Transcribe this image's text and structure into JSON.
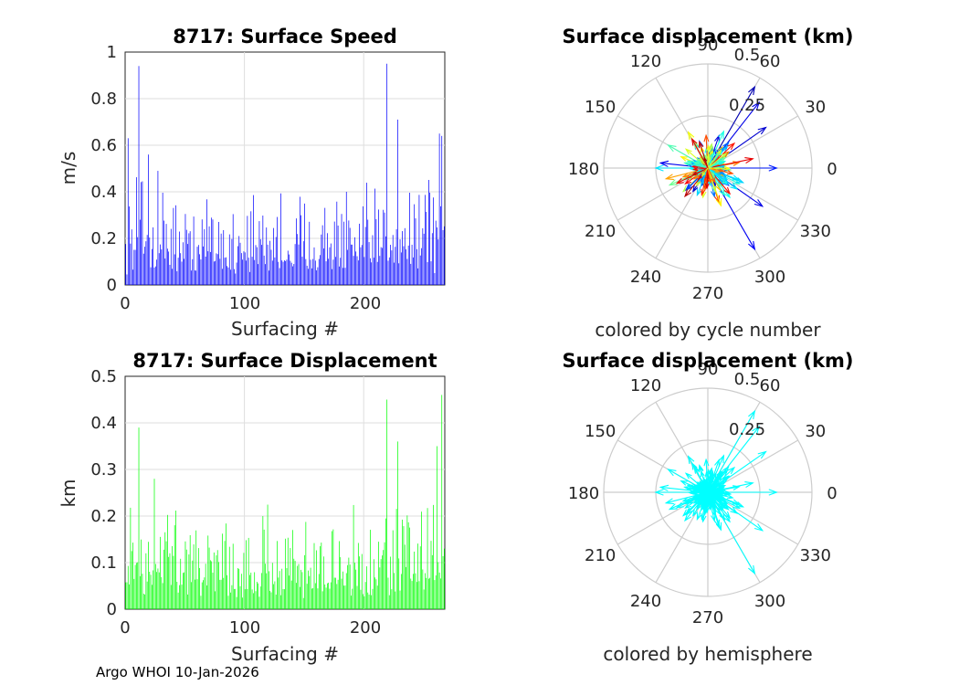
{
  "footer": "Argo WHOI 10-Jan-2026",
  "colors": {
    "speed": "#0000ff",
    "displacement": "#00ff00",
    "hemisphere": "#00ffff",
    "grid": "#dedede",
    "axis": "#262626"
  },
  "chart_data": [
    {
      "id": "speed",
      "type": "bar",
      "title": "8717: Surface Speed",
      "xlabel": "Surfacing #",
      "ylabel": "m/s",
      "xlim": [
        0,
        268
      ],
      "ylim": [
        0,
        1
      ],
      "xticks": [
        "0",
        "100",
        "200"
      ],
      "yticks": [
        "0",
        "0.2",
        "0.4",
        "0.6",
        "0.8",
        "1"
      ],
      "grid": true,
      "n": 268,
      "peaks": [
        {
          "x": 3,
          "y": 0.63
        },
        {
          "x": 12,
          "y": 0.94
        },
        {
          "x": 20,
          "y": 0.56
        },
        {
          "x": 28,
          "y": 0.49
        },
        {
          "x": 220,
          "y": 0.95
        },
        {
          "x": 229,
          "y": 0.71
        },
        {
          "x": 264,
          "y": 0.65
        },
        {
          "x": 266,
          "y": 0.64
        }
      ],
      "baseline_mean": 0.22
    },
    {
      "id": "displacement",
      "type": "bar",
      "title": "8717: Surface Displacement",
      "xlabel": "Surfacing #",
      "ylabel": "km",
      "xlim": [
        0,
        268
      ],
      "ylim": [
        0,
        0.5
      ],
      "xticks": [
        "0",
        "100",
        "200"
      ],
      "yticks": [
        "0",
        "0.1",
        "0.2",
        "0.3",
        "0.4",
        "0.5"
      ],
      "grid": true,
      "n": 268,
      "peaks": [
        {
          "x": 12,
          "y": 0.39
        },
        {
          "x": 25,
          "y": 0.28
        },
        {
          "x": 220,
          "y": 0.45
        },
        {
          "x": 229,
          "y": 0.36
        },
        {
          "x": 262,
          "y": 0.35
        },
        {
          "x": 266,
          "y": 0.46
        }
      ],
      "baseline_mean": 0.11
    },
    {
      "id": "polar-cycle",
      "type": "polar-quiver",
      "title": "Surface displacement (km)",
      "caption": "colored by cycle number",
      "rmax": 0.5,
      "rticks": [
        "0.25",
        "0.5"
      ],
      "angle_ticks": [
        "0",
        "30",
        "60",
        "90",
        "120",
        "150",
        "180",
        "210",
        "240",
        "270",
        "300",
        "330"
      ],
      "colormap": "jet",
      "long_vectors": [
        {
          "angle": 60,
          "r": 0.45
        },
        {
          "angle": 52,
          "r": 0.4
        },
        {
          "angle": 35,
          "r": 0.34
        },
        {
          "angle": 0,
          "r": 0.33
        },
        {
          "angle": 300,
          "r": 0.45
        },
        {
          "angle": 325,
          "r": 0.32
        },
        {
          "angle": 180,
          "r": 0.25
        },
        {
          "angle": 150,
          "r": 0.22
        }
      ]
    },
    {
      "id": "polar-hemisphere",
      "type": "polar-quiver",
      "title": "Surface displacement (km)",
      "caption": "colored by hemisphere",
      "rmax": 0.5,
      "rticks": [
        "0.25",
        "0.5"
      ],
      "angle_ticks": [
        "0",
        "30",
        "60",
        "90",
        "120",
        "150",
        "180",
        "210",
        "240",
        "270",
        "300",
        "330"
      ],
      "color": "#00ffff",
      "long_vectors": [
        {
          "angle": 60,
          "r": 0.45
        },
        {
          "angle": 52,
          "r": 0.4
        },
        {
          "angle": 35,
          "r": 0.34
        },
        {
          "angle": 0,
          "r": 0.33
        },
        {
          "angle": 300,
          "r": 0.45
        },
        {
          "angle": 325,
          "r": 0.32
        },
        {
          "angle": 180,
          "r": 0.25
        },
        {
          "angle": 150,
          "r": 0.22
        }
      ]
    }
  ]
}
